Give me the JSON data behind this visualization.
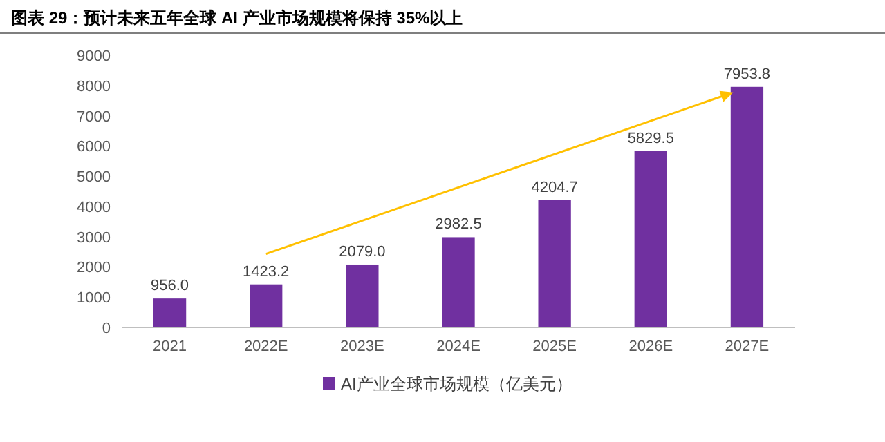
{
  "chart_data": {
    "type": "bar",
    "title": "图表 29：预计未来五年全球 AI 产业市场规模将保持 35%以上",
    "categories": [
      "2021",
      "2022E",
      "2023E",
      "2024E",
      "2025E",
      "2026E",
      "2027E"
    ],
    "series": [
      {
        "name": "AI产业全球市场规模（亿美元）",
        "color": "#7030a0",
        "values": [
          956,
          1423.2,
          2079,
          2982.5,
          4204.7,
          5829.5,
          7953.8
        ],
        "value_labels": [
          "956.0",
          "1423.2",
          "2079.0",
          "2982.5",
          "4204.7",
          "5829.5",
          "7953.8"
        ]
      }
    ],
    "ylim": [
      0,
      9000
    ],
    "yticks": [
      0,
      1000,
      2000,
      3000,
      4000,
      5000,
      6000,
      7000,
      8000,
      9000
    ],
    "legend": "bottom",
    "grid": false
  }
}
